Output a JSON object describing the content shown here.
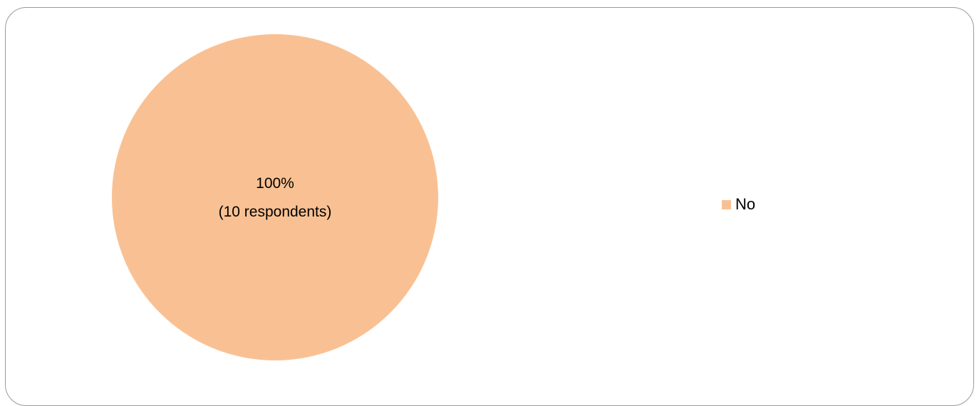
{
  "chart_data": {
    "type": "pie",
    "title": "",
    "slices": [
      {
        "label": "No",
        "value": 10,
        "percent": 100,
        "data_label_line1": "100%",
        "data_label_line2": "(10 respondents)",
        "color": "#F9C193"
      }
    ],
    "legend": {
      "placement": "right",
      "entries": [
        "No"
      ]
    }
  }
}
